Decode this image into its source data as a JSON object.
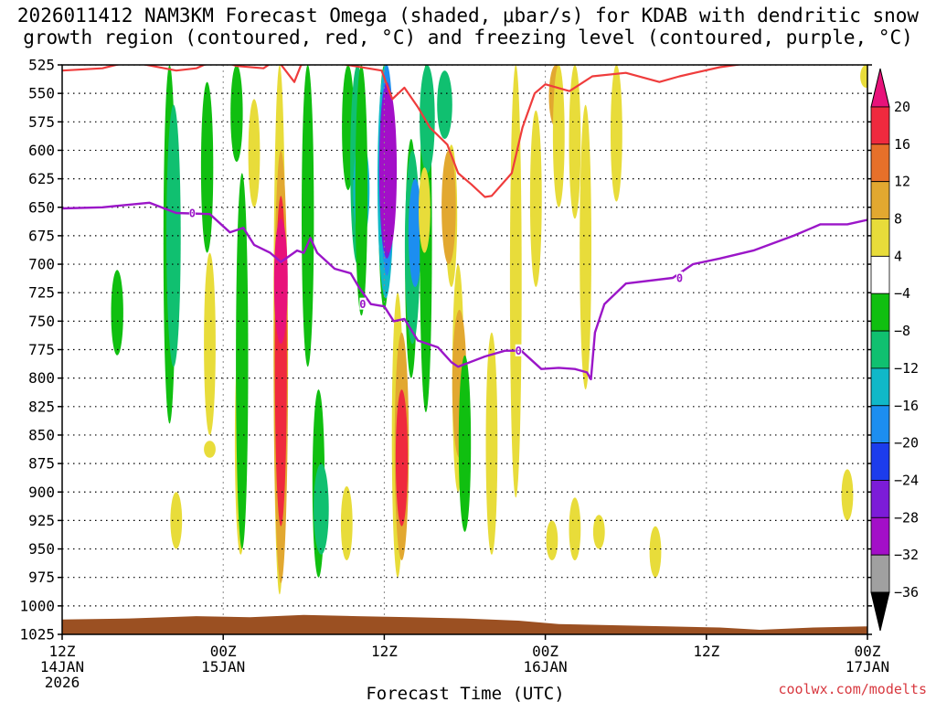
{
  "title_line1": "2026011412 NAM3KM Forecast Omega (shaded, μbar/s) for KDAB with dendritic snow",
  "title_line2": "growth region (contoured, red, °C) and freezing level (contoured, purple, °C)",
  "credit": "coolwx.com/modelts",
  "chart_data": {
    "type": "heatmap",
    "title": "2026011412 NAM3KM Forecast Omega (shaded, μbar/s) for KDAB with dendritic snow growth region (contoured, red, °C) and freezing level (contoured, purple, °C)",
    "xlabel": "Forecast Time (UTC)",
    "ylabel": "",
    "y_axis": {
      "reversed": true,
      "range": [
        1025,
        525
      ],
      "ticks": [
        "525",
        "550",
        "575",
        "600",
        "625",
        "650",
        "675",
        "700",
        "725",
        "750",
        "775",
        "800",
        "825",
        "850",
        "875",
        "900",
        "925",
        "950",
        "975",
        "1000",
        "1025"
      ]
    },
    "x_axis": {
      "range_hours": [
        0,
        60
      ],
      "ticks": [
        {
          "hour": 0,
          "lines": [
            "12Z",
            "14JAN",
            "2026"
          ]
        },
        {
          "hour": 12,
          "lines": [
            "00Z",
            "15JAN"
          ]
        },
        {
          "hour": 24,
          "lines": [
            "12Z"
          ]
        },
        {
          "hour": 36,
          "lines": [
            "00Z",
            "16JAN"
          ]
        },
        {
          "hour": 48,
          "lines": [
            "12Z"
          ]
        },
        {
          "hour": 60,
          "lines": [
            "00Z",
            "17JAN"
          ]
        }
      ]
    },
    "grid": true,
    "colorbar": {
      "tick_labels": [
        "20",
        "16",
        "12",
        "8",
        "4",
        "−4",
        "−8",
        "−12",
        "−16",
        "−20",
        "−24",
        "−28",
        "−32",
        "−36"
      ],
      "bins": [
        {
          "range": [
            20,
            99
          ],
          "color": "#e8127a"
        },
        {
          "range": [
            16,
            20
          ],
          "color": "#ef2a3e"
        },
        {
          "range": [
            12,
            16
          ],
          "color": "#e6702a"
        },
        {
          "range": [
            8,
            12
          ],
          "color": "#e2a830"
        },
        {
          "range": [
            4,
            8
          ],
          "color": "#e8dc3a"
        },
        {
          "range": [
            -4,
            4
          ],
          "color": "#ffffff"
        },
        {
          "range": [
            -8,
            -4
          ],
          "color": "#10bf10"
        },
        {
          "range": [
            -12,
            -8
          ],
          "color": "#10c070"
        },
        {
          "range": [
            -16,
            -12
          ],
          "color": "#10b8c8"
        },
        {
          "range": [
            -20,
            -16
          ],
          "color": "#1c8ef0"
        },
        {
          "range": [
            -24,
            -20
          ],
          "color": "#1c3cec"
        },
        {
          "range": [
            -28,
            -24
          ],
          "color": "#7c1cd8"
        },
        {
          "range": [
            -32,
            -28
          ],
          "color": "#a30fc8"
        },
        {
          "range": [
            -36,
            -32
          ],
          "color": "#a0a0a0"
        },
        {
          "range": [
            -99,
            -36
          ],
          "color": "#000000"
        }
      ]
    },
    "omega_features": [
      {
        "hour": 8.0,
        "p": [
          525,
          840
        ],
        "omega": -6
      },
      {
        "hour": 8.3,
        "p": [
          560,
          790
        ],
        "omega": -10
      },
      {
        "hour": 4.1,
        "p": [
          705,
          780
        ],
        "omega": -6
      },
      {
        "hour": 8.5,
        "p": [
          900,
          950
        ],
        "omega": 5
      },
      {
        "hour": 10.8,
        "p": [
          540,
          690
        ],
        "omega": -6
      },
      {
        "hour": 11.0,
        "p": [
          690,
          850
        ],
        "omega": 5
      },
      {
        "hour": 11.0,
        "p": [
          855,
          870
        ],
        "omega": 5
      },
      {
        "hour": 13.0,
        "p": [
          525,
          610
        ],
        "omega": -6
      },
      {
        "hour": 13.3,
        "p": [
          755,
          955
        ],
        "omega": 5
      },
      {
        "hour": 13.4,
        "p": [
          620,
          950
        ],
        "omega": -6
      },
      {
        "hour": 14.3,
        "p": [
          555,
          650
        ],
        "omega": 5
      },
      {
        "hour": 16.2,
        "p": [
          525,
          990
        ],
        "omega": 6
      },
      {
        "hour": 16.3,
        "p": [
          600,
          980
        ],
        "omega": 10
      },
      {
        "hour": 16.3,
        "p": [
          640,
          930
        ],
        "omega": 16
      },
      {
        "hour": 16.3,
        "p": [
          660,
          770
        ],
        "omega": 21
      },
      {
        "hour": 18.3,
        "p": [
          525,
          790
        ],
        "omega": -6
      },
      {
        "hour": 19.1,
        "p": [
          810,
          975
        ],
        "omega": -6
      },
      {
        "hour": 19.3,
        "p": [
          875,
          955
        ],
        "omega": -12
      },
      {
        "hour": 21.3,
        "p": [
          525,
          635
        ],
        "omega": -6
      },
      {
        "hour": 21.2,
        "p": [
          895,
          960
        ],
        "omega": 5
      },
      {
        "hour": 22.0,
        "p": [
          525,
          700
        ],
        "omega": -10
      },
      {
        "hour": 22.3,
        "p": [
          590,
          680
        ],
        "omega": -14
      },
      {
        "hour": 22.3,
        "p": [
          525,
          745
        ],
        "omega": -6
      },
      {
        "hour": 24.0,
        "p": [
          525,
          740
        ],
        "omega": -6
      },
      {
        "hour": 24.1,
        "p": [
          525,
          730
        ],
        "omega": -14
      },
      {
        "hour": 24.2,
        "p": [
          525,
          710
        ],
        "omega": -20
      },
      {
        "hour": 24.2,
        "p": [
          540,
          695
        ],
        "omega": -26
      },
      {
        "hour": 24.3,
        "p": [
          545,
          690
        ],
        "omega": -30
      },
      {
        "hour": 25.0,
        "p": [
          725,
          975
        ],
        "omega": 5
      },
      {
        "hour": 25.3,
        "p": [
          760,
          960
        ],
        "omega": 10
      },
      {
        "hour": 25.3,
        "p": [
          810,
          930
        ],
        "omega": 16
      },
      {
        "hour": 26.0,
        "p": [
          590,
          800
        ],
        "omega": -6
      },
      {
        "hour": 26.1,
        "p": [
          600,
          770
        ],
        "omega": -12
      },
      {
        "hour": 26.3,
        "p": [
          625,
          720
        ],
        "omega": -20
      },
      {
        "hour": 27.1,
        "p": [
          525,
          830
        ],
        "omega": -6
      },
      {
        "hour": 27.2,
        "p": [
          525,
          620
        ],
        "omega": -12
      },
      {
        "hour": 27.0,
        "p": [
          615,
          690
        ],
        "omega": 5
      },
      {
        "hour": 28.5,
        "p": [
          530,
          590
        ],
        "omega": -12
      },
      {
        "hour": 29.0,
        "p": [
          595,
          720
        ],
        "omega": 5
      },
      {
        "hour": 28.8,
        "p": [
          600,
          700
        ],
        "omega": 10
      },
      {
        "hour": 29.5,
        "p": [
          700,
          900
        ],
        "omega": 5
      },
      {
        "hour": 29.6,
        "p": [
          740,
          870
        ],
        "omega": 10
      },
      {
        "hour": 30.0,
        "p": [
          780,
          935
        ],
        "omega": -6
      },
      {
        "hour": 33.8,
        "p": [
          525,
          905
        ],
        "omega": 5
      },
      {
        "hour": 32.0,
        "p": [
          760,
          955
        ],
        "omega": 5
      },
      {
        "hour": 35.3,
        "p": [
          565,
          720
        ],
        "omega": 5
      },
      {
        "hour": 36.8,
        "p": [
          525,
          580
        ],
        "omega": 10
      },
      {
        "hour": 37.0,
        "p": [
          525,
          650
        ],
        "omega": 5
      },
      {
        "hour": 38.2,
        "p": [
          525,
          660
        ],
        "omega": 5
      },
      {
        "hour": 39.0,
        "p": [
          560,
          810
        ],
        "omega": 5
      },
      {
        "hour": 41.3,
        "p": [
          525,
          645
        ],
        "omega": 5
      },
      {
        "hour": 38.2,
        "p": [
          905,
          960
        ],
        "omega": 5
      },
      {
        "hour": 40.0,
        "p": [
          920,
          950
        ],
        "omega": 5
      },
      {
        "hour": 44.2,
        "p": [
          930,
          975
        ],
        "omega": 5
      },
      {
        "hour": 59.9,
        "p": [
          525,
          545
        ],
        "omega": 5
      },
      {
        "hour": 58.5,
        "p": [
          880,
          925
        ],
        "omega": 5
      },
      {
        "hour": 36.5,
        "p": [
          925,
          960
        ],
        "omega": 5
      }
    ],
    "dgz_boundary": [
      {
        "hour": 0,
        "p": 530
      },
      {
        "hour": 3,
        "p": 528
      },
      {
        "hour": 5,
        "p": 522
      },
      {
        "hour": 8.5,
        "p": 530
      },
      {
        "hour": 10,
        "p": 528
      },
      {
        "hour": 11.5,
        "p": 520
      },
      {
        "hour": 13,
        "p": 526
      },
      {
        "hour": 15,
        "p": 528
      },
      {
        "hour": 16,
        "p": 520
      },
      {
        "hour": 17.3,
        "p": 540
      },
      {
        "hour": 17.8,
        "p": 525
      },
      {
        "hour": 19,
        "p": 522
      },
      {
        "hour": 20.2,
        "p": 523
      },
      {
        "hour": 23.8,
        "p": 530
      },
      {
        "hour": 24.6,
        "p": 555
      },
      {
        "hour": 25.5,
        "p": 545
      },
      {
        "hour": 26.5,
        "p": 562
      },
      {
        "hour": 27.4,
        "p": 580
      },
      {
        "hour": 28.7,
        "p": 595
      },
      {
        "hour": 29.5,
        "p": 620
      },
      {
        "hour": 30.5,
        "p": 630
      },
      {
        "hour": 31.5,
        "p": 641
      },
      {
        "hour": 32.0,
        "p": 640
      },
      {
        "hour": 33.5,
        "p": 620
      },
      {
        "hour": 34.3,
        "p": 580
      },
      {
        "hour": 35.2,
        "p": 550
      },
      {
        "hour": 36.0,
        "p": 542
      },
      {
        "hour": 37.8,
        "p": 548
      },
      {
        "hour": 39.5,
        "p": 535
      },
      {
        "hour": 42.0,
        "p": 532
      },
      {
        "hour": 44.5,
        "p": 540
      },
      {
        "hour": 46,
        "p": 535
      },
      {
        "hour": 49,
        "p": 527
      },
      {
        "hour": 52,
        "p": 522
      }
    ],
    "freezing_level": [
      {
        "hour": 0,
        "p": 651
      },
      {
        "hour": 3,
        "p": 650
      },
      {
        "hour": 6.5,
        "p": 646
      },
      {
        "hour": 8.5,
        "p": 655
      },
      {
        "hour": 11,
        "p": 656
      },
      {
        "hour": 12.5,
        "p": 672
      },
      {
        "hour": 13.5,
        "p": 668
      },
      {
        "hour": 14.3,
        "p": 683
      },
      {
        "hour": 15.5,
        "p": 690
      },
      {
        "hour": 16.3,
        "p": 698
      },
      {
        "hour": 17.5,
        "p": 688
      },
      {
        "hour": 18.0,
        "p": 690
      },
      {
        "hour": 18.5,
        "p": 677
      },
      {
        "hour": 19.0,
        "p": 690
      },
      {
        "hour": 20.3,
        "p": 704
      },
      {
        "hour": 21.5,
        "p": 708
      },
      {
        "hour": 22.1,
        "p": 720
      },
      {
        "hour": 23.0,
        "p": 735
      },
      {
        "hour": 24.0,
        "p": 737
      },
      {
        "hour": 24.7,
        "p": 750
      },
      {
        "hour": 25.5,
        "p": 748
      },
      {
        "hour": 26.5,
        "p": 767
      },
      {
        "hour": 28.0,
        "p": 773
      },
      {
        "hour": 29.0,
        "p": 786
      },
      {
        "hour": 29.5,
        "p": 790
      },
      {
        "hour": 31.5,
        "p": 781
      },
      {
        "hour": 33.0,
        "p": 776
      },
      {
        "hour": 34.2,
        "p": 776
      },
      {
        "hour": 35.7,
        "p": 792
      },
      {
        "hour": 37.0,
        "p": 791
      },
      {
        "hour": 38.2,
        "p": 792
      },
      {
        "hour": 39.1,
        "p": 795
      },
      {
        "hour": 39.4,
        "p": 801
      },
      {
        "hour": 39.7,
        "p": 760
      },
      {
        "hour": 40.4,
        "p": 735
      },
      {
        "hour": 42.0,
        "p": 717
      },
      {
        "hour": 45.5,
        "p": 712
      },
      {
        "hour": 47.0,
        "p": 700
      },
      {
        "hour": 49.0,
        "p": 695
      },
      {
        "hour": 51.5,
        "p": 688
      },
      {
        "hour": 54.5,
        "p": 675
      },
      {
        "hour": 56.5,
        "p": 665
      },
      {
        "hour": 58.5,
        "p": 665
      },
      {
        "hour": 60.0,
        "p": 661
      }
    ],
    "freezing_level_labels": [
      {
        "hour": 9.7,
        "p": 655,
        "text": "0"
      },
      {
        "hour": 22.4,
        "p": 735,
        "text": "0"
      },
      {
        "hour": 34.0,
        "p": 776,
        "text": "0"
      },
      {
        "hour": 46.0,
        "p": 712,
        "text": "0"
      }
    ],
    "terrain": [
      {
        "hour": 0,
        "p": 1012
      },
      {
        "hour": 5,
        "p": 1011
      },
      {
        "hour": 10,
        "p": 1009
      },
      {
        "hour": 14,
        "p": 1010
      },
      {
        "hour": 18,
        "p": 1008
      },
      {
        "hour": 22,
        "p": 1009
      },
      {
        "hour": 26,
        "p": 1010
      },
      {
        "hour": 30,
        "p": 1011
      },
      {
        "hour": 34,
        "p": 1013
      },
      {
        "hour": 37,
        "p": 1016
      },
      {
        "hour": 41,
        "p": 1017
      },
      {
        "hour": 45,
        "p": 1018
      },
      {
        "hour": 49,
        "p": 1019
      },
      {
        "hour": 52,
        "p": 1021
      },
      {
        "hour": 56,
        "p": 1019
      },
      {
        "hour": 60,
        "p": 1018
      }
    ]
  }
}
